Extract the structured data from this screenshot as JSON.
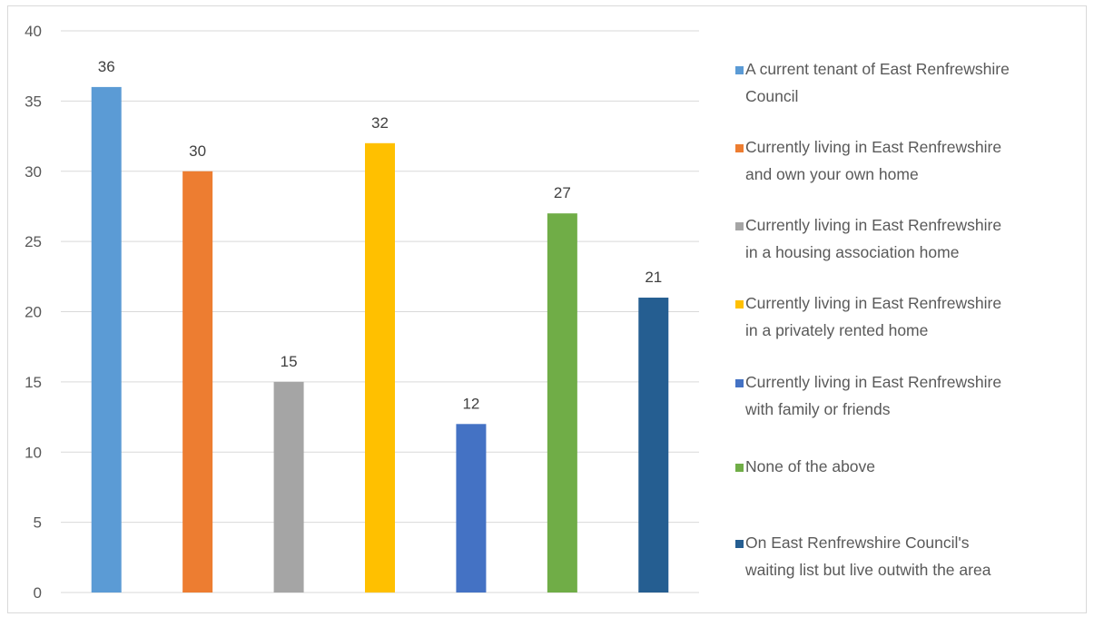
{
  "chart_data": {
    "type": "bar",
    "title": "",
    "xlabel": "",
    "ylabel": "",
    "ylim": [
      0,
      40
    ],
    "yticks": [
      0,
      5,
      10,
      15,
      20,
      25,
      30,
      35,
      40
    ],
    "grid": true,
    "legend_position": "right",
    "show_data_labels": true,
    "series": [
      {
        "name": "A current tenant of East Renfrewshire\nCouncil",
        "value": 36,
        "color": "#5B9BD5"
      },
      {
        "name": "Currently living in East Renfrewshire\nand own your own home",
        "value": 30,
        "color": "#ED7D31"
      },
      {
        "name": "Currently living in East Renfrewshire\nin a housing association home",
        "value": 15,
        "color": "#A5A5A5"
      },
      {
        "name": "Currently living in East Renfrewshire\nin a privately rented home",
        "value": 32,
        "color": "#FFC000"
      },
      {
        "name": "Currently living in East Renfrewshire\nwith family or friends",
        "value": 12,
        "color": "#4472C4"
      },
      {
        "name": "None of the above",
        "value": 27,
        "color": "#70AD47"
      },
      {
        "name": "On East Renfrewshire Council's\nwaiting list but live outwith the area",
        "value": 21,
        "color": "#255E91"
      }
    ]
  }
}
